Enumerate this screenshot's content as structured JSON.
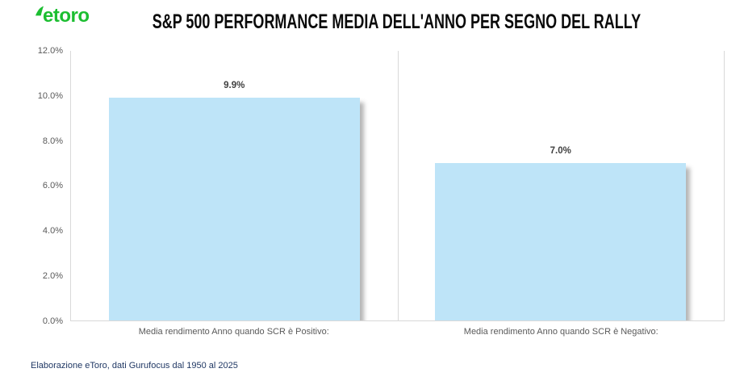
{
  "header": {
    "logo_text": "etoro",
    "title": "S&P 500 PERFORMANCE MEDIA DELL'ANNO PER SEGNO DEL RALLY"
  },
  "chart_data": {
    "type": "bar",
    "title": "S&P 500 PERFORMANCE MEDIA DELL'ANNO PER SEGNO DEL RALLY",
    "categories": [
      "Media rendimento Anno quando SCR è Positivo:",
      "Media rendimento Anno quando SCR è Negativo:"
    ],
    "values": [
      9.9,
      7.0
    ],
    "value_labels": [
      "9.9%",
      "7.0%"
    ],
    "ylim": [
      0,
      12
    ],
    "ytick_step": 2,
    "yticks": [
      "12.0%",
      "10.0%",
      "8.0%",
      "6.0%",
      "4.0%",
      "2.0%",
      "0.0%"
    ],
    "xlabel": "",
    "ylabel": "",
    "grid": false,
    "legend": false,
    "bar_color": "#BEE4F8"
  },
  "footer": {
    "text": "Elaborazione eToro, dati Gurufocus dal 1950 al 2025"
  },
  "colors": {
    "logo_green": "#1CBE31",
    "footer_navy": "#203864",
    "axis_gray": "#D9D9D9",
    "tick_text": "#595959",
    "value_label_text": "#404040"
  }
}
